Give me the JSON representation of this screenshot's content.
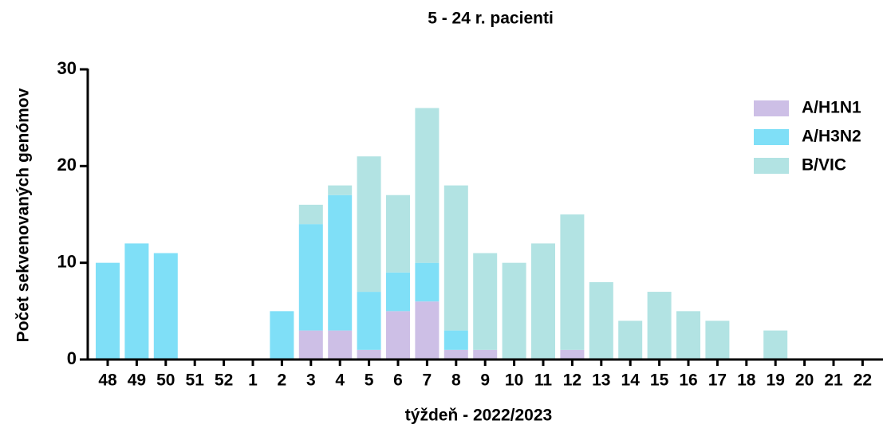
{
  "chart_data": {
    "type": "stacked_bar",
    "title": "5 - 24 r. pacienti",
    "x_label": "týždeň - 2022/2023",
    "y_label": "Počet sekvenovaných genómov",
    "categories": [
      "48",
      "49",
      "50",
      "51",
      "52",
      "1",
      "2",
      "3",
      "4",
      "5",
      "6",
      "7",
      "8",
      "9",
      "10",
      "11",
      "12",
      "13",
      "14",
      "15",
      "16",
      "17",
      "18",
      "19",
      "20",
      "21",
      "22"
    ],
    "series": [
      {
        "name": "A/H1N1",
        "color": "#cdbfe6",
        "values": [
          0,
          0,
          0,
          0,
          0,
          0,
          0,
          3,
          3,
          1,
          5,
          6,
          1,
          1,
          0,
          0,
          1,
          0,
          0,
          0,
          0,
          0,
          0,
          0,
          0,
          0,
          0
        ]
      },
      {
        "name": "A/H3N2",
        "color": "#7fdff7",
        "values": [
          10,
          12,
          11,
          0,
          0,
          0,
          5,
          11,
          14,
          6,
          4,
          4,
          2,
          0,
          0,
          0,
          0,
          0,
          0,
          0,
          0,
          0,
          0,
          0,
          0,
          0,
          0
        ]
      },
      {
        "name": "B/VIC",
        "color": "#b2e3e3",
        "values": [
          0,
          0,
          0,
          0,
          0,
          0,
          0,
          2,
          1,
          14,
          8,
          16,
          15,
          10,
          10,
          12,
          14,
          8,
          4,
          7,
          5,
          4,
          0,
          3,
          0,
          0,
          0
        ]
      }
    ],
    "ylim": [
      0,
      30
    ],
    "yticks": [
      0,
      10,
      20,
      30
    ],
    "legend": "upper right"
  }
}
